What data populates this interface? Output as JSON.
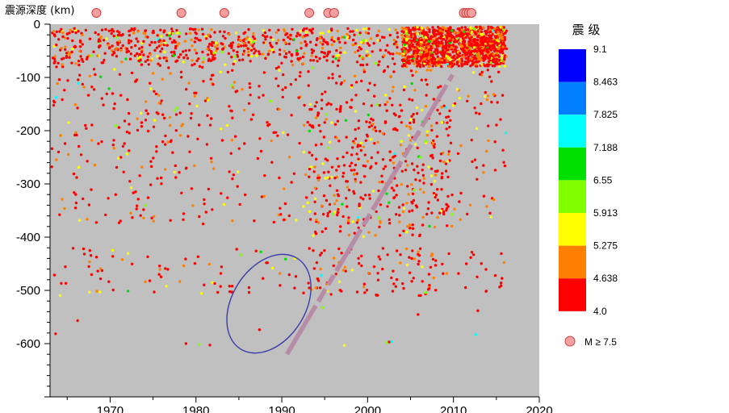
{
  "chart_data": {
    "type": "scatter",
    "ylabel": "震源深度 (km)",
    "xlim": [
      1963,
      2020
    ],
    "ylim": [
      -700,
      0
    ],
    "x_ticks": [
      "1970",
      "1980",
      "1990",
      "2000",
      "2010",
      "2020"
    ],
    "x_tick_values": [
      1970,
      1980,
      1990,
      2000,
      2010,
      2020
    ],
    "y_ticks": [
      "0",
      "-100",
      "-200",
      "-300",
      "-400",
      "-500",
      "-600"
    ],
    "y_tick_values": [
      0,
      -100,
      -200,
      -300,
      -400,
      -500,
      -600
    ],
    "grid": false,
    "plot_background": "#c0c0c0",
    "legend": {
      "title": "震  级",
      "position": "right",
      "boundaries": [
        "9.1",
        "8.463",
        "7.825",
        "7.188",
        "6.55",
        "5.913",
        "5.275",
        "4.638",
        "4.0"
      ],
      "colors": [
        "#0000ff",
        "#0080ff",
        "#00ffff",
        "#00e000",
        "#80ff00",
        "#ffff00",
        "#ff8000",
        "#ff0000"
      ],
      "marker_label": "M ≥ 7.5"
    },
    "large_events": {
      "name": "M ≥ 7.5",
      "color": "#f4a0a0",
      "years": [
        1968.4,
        1978.3,
        1983.3,
        1993.2,
        1995.4,
        1996.1,
        2011.2,
        2011.5,
        2011.8,
        2012.1
      ]
    },
    "trend_line": {
      "color": "#b78aa6",
      "from": [
        1990.6,
        -620
      ],
      "to": [
        2009.9,
        -95
      ]
    },
    "ellipse": {
      "color": "#3b3bab",
      "center": [
        1988.5,
        -525
      ],
      "semi_x_years": 4.3,
      "semi_y_km": 125,
      "tilt_deg": -30
    }
  }
}
